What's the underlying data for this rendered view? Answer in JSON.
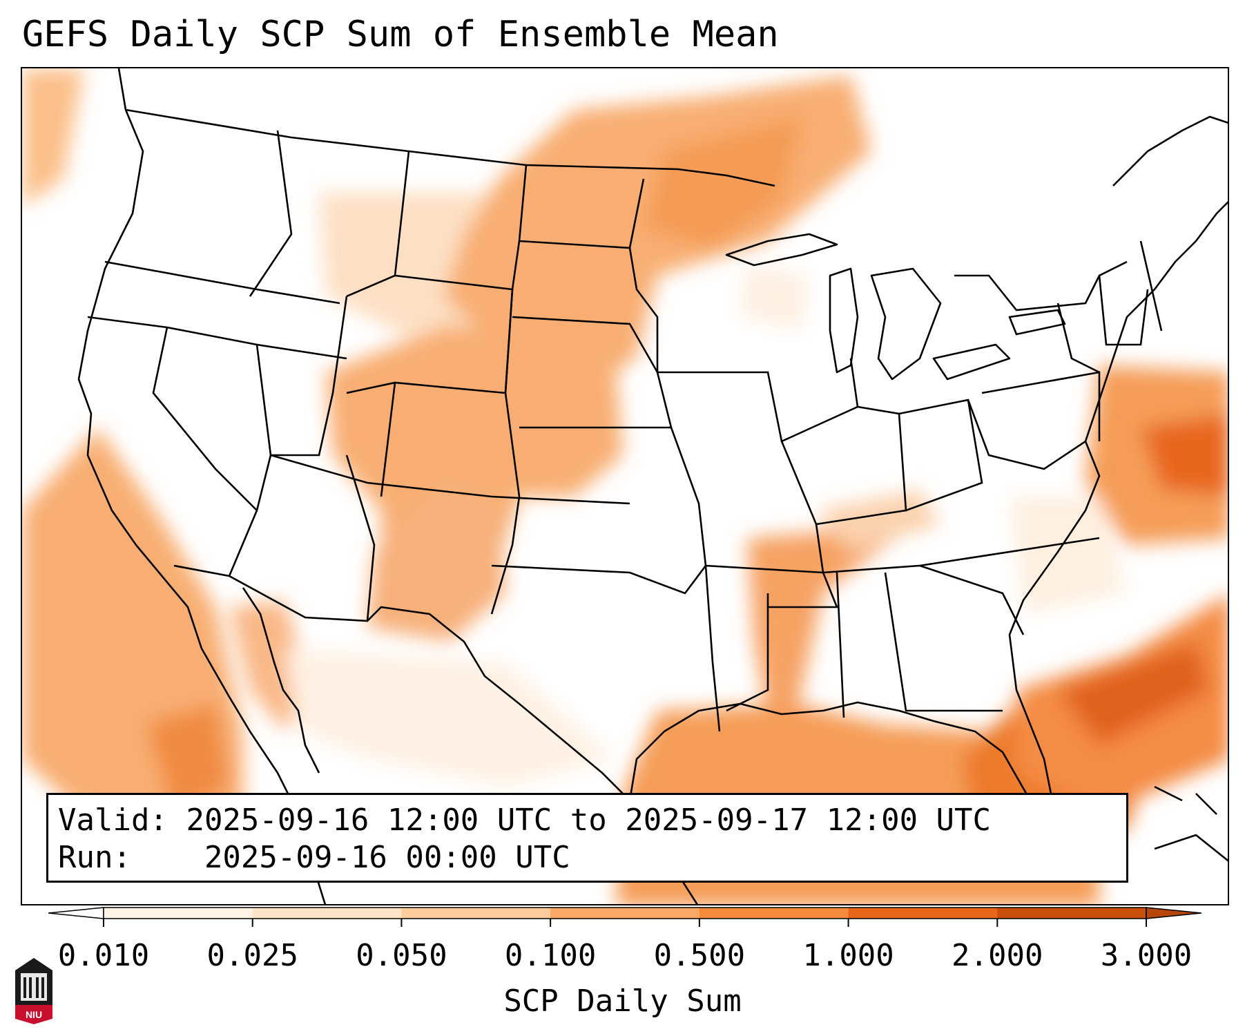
{
  "title": "GEFS Daily SCP Sum of Ensemble Mean",
  "info": {
    "valid_label": "Valid:",
    "valid_value": "2025-09-16 12:00 UTC to 2025-09-17 12:00 UTC",
    "run_label": "Run:",
    "run_value": "2025-09-16 00:00 UTC"
  },
  "colorbar": {
    "label": "SCP Daily Sum",
    "ticks": [
      "0.010",
      "0.025",
      "0.050",
      "0.100",
      "0.500",
      "1.000",
      "2.000",
      "3.000"
    ],
    "colors": [
      "#fff3e6",
      "#fde3c8",
      "#fdcb9c",
      "#fba866",
      "#f48a3a",
      "#e8661a",
      "#c8500a"
    ],
    "extend": "both"
  },
  "logo": {
    "text": "NIU",
    "icon": "university-building-icon",
    "color": "#c8102e"
  },
  "map": {
    "projection": "lambert-conformal",
    "region": "contiguous United States"
  }
}
